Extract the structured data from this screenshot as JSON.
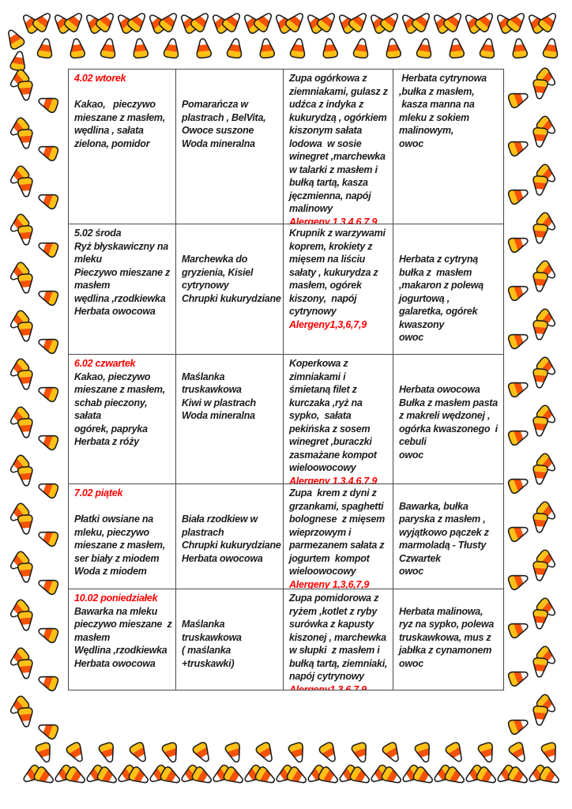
{
  "colors": {
    "accent_red": "#ff0000",
    "text_black": "#1b1b1b",
    "table_border": "#4a4a4a",
    "candy_white": "#ffffff",
    "candy_orange": "#f55205",
    "candy_yellow": "#fdc014",
    "candy_outline": "#1c1c1c"
  },
  "border": {
    "icon": "candy-corn-icon"
  },
  "table": {
    "rows": [
      {
        "date_label": "4.02 wtorek",
        "date_color": "red",
        "breakfast": "\nKakao,   pieczywo\nmieszane z masłem,\nwędlina , sałata\nzielona, pomidor",
        "second_breakfast": "\n\nPomarańcza w\nplastrach , BelVita,\nOwoce suszone\nWoda mineralna",
        "lunch": "Zupa ogórkowa z\nziemniakami, gulasz z\nudźca z indyka z\nkukurydzą , ogórkiem\nkiszonym sałata\nlodowa  w sosie\nwinegret ,marchewka\nw talarki z masłem i\nbułką tartą, kasza\njęczmienna, napój\nmalinowy",
        "allergens": "Alergeny 1,3,4,6,7,9",
        "snack": " Herbata cytrynowa\n,bułka z masłem,\n kasza manna na\nmleku z sokiem\nmalinowym,\nowoc"
      },
      {
        "date_label": "5.02 środa",
        "date_color": "black",
        "breakfast": "Ryż błyskawiczny na\nmleku\nPieczywo mieszane z\nmasłem\nwędlina ,rzodkiewka\nHerbata owocowa",
        "second_breakfast": "\n\nMarchewka do\ngryzienia, Kisiel\ncytrynowy\nChrupki kukurydziane",
        "lunch": "Krupnik z warzywami\nkoprem, krokiety z\nmięsem na liściu\nsałaty , kukurydza z\nmasłem, ogórek\nkiszony,  napój\ncytrynowy",
        "allergens": "Alergeny1,3,6,7,9",
        "snack": "\n\nHerbata z cytryną\nbułka z  masłem\n,makaron z polewą\njogurtową ,\ngalaretka, ogórek\nkwaszony\nowoc"
      },
      {
        "date_label": "6.02 czwartek",
        "date_color": "red",
        "breakfast": "Kakao, pieczywo\nmieszane z masłem,\nschab pieczony, sałata\nogórek, papryka\nHerbata z róży",
        "second_breakfast": "\nMaślanka\ntruskawkowa\nKiwi w plastrach\nWoda mineralna",
        "lunch": "Koperkowa z\nzimniakami i\nśmietaną filet z\nkurczaka ,ryż na\nsypko,  sałata\npekińska z sosem\nwinegret ,buraczki\nzasmażane kompot\nwieloowocowy",
        "allergens": "Alergeny 1,3,4,6,7,9",
        "snack": "\n\nHerbata owocowa\nBułka z masłem pasta\nz makreli wędzonej ,\nogórka kwaszonego  i\ncebuli\nowoc"
      },
      {
        "date_label": "7.02 piątek",
        "date_color": "red",
        "breakfast": "\nPłatki owsiane na\nmleku, pieczywo\nmieszane z masłem,\nser biały z miodem\nWoda z miodem",
        "second_breakfast": "\n\nBiała rzodkiew w\nplastrach\nChrupki kukurydziane\nHerbata owocowa",
        "lunch": "Zupa  krem z dyni z\ngrzankami, spaghetti\nbolognese  z mięsem\nwieprzowym i\nparmezanem sałata z\njogurtem  kompot\nwieloowocowy",
        "allergens": "Alergeny 1,3,6,7,9",
        "snack": "\nBawarka, bułka\nparyska z masłem ,\nwyjątkowo pączek z\nmarmoladą - Tłusty\nCzwartek\nowoc"
      },
      {
        "date_label": "10.02 poniedziałek",
        "date_color": "red",
        "breakfast": "Bawarka na mleku\npieczywo mieszane  z\nmasłem\nWędlina ,rzodkiewka\nHerbata owocowa",
        "second_breakfast": "\n\nMaślanka\ntruskawkowa\n( maślanka\n+truskawki)",
        "lunch": "Zupa pomidorowa z\nryżem ,kotlet z ryby\nsurówka z kapusty\nkiszonej , marchewka\nw słupki  z masłem i\nbułką tartą, ziemniaki,\nnapój cytrynowy",
        "allergens": "Alergeny1,3,6,7,9",
        "snack": "\nHerbata malinowa,\nryz na sypko, polewa\ntruskawkowa, mus z\njabłka z cynamonem\nowoc"
      }
    ]
  }
}
